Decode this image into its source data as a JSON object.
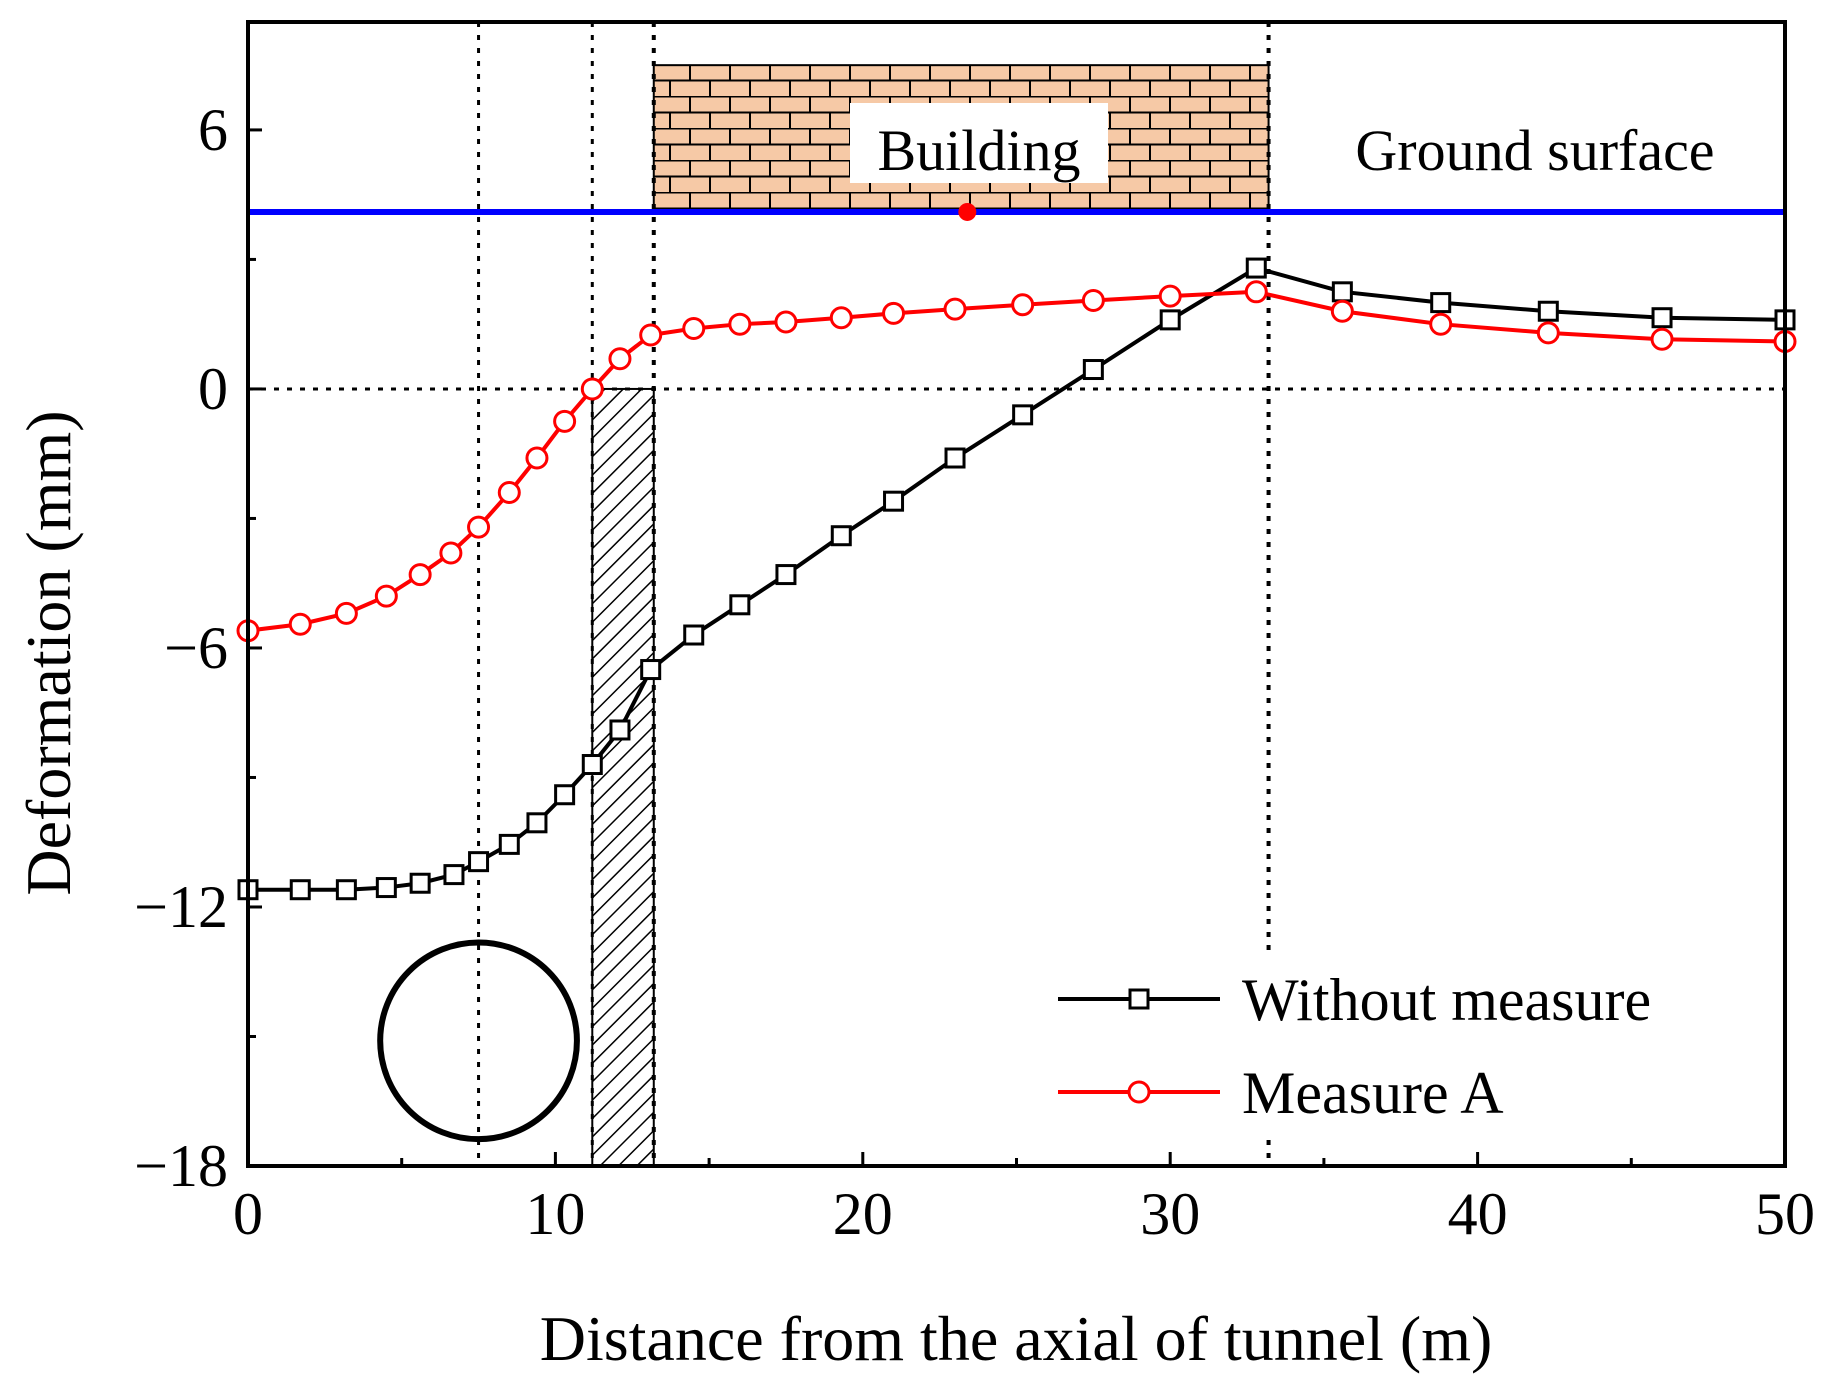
{
  "chart_data": {
    "type": "line",
    "xlabel": "Distance from the axial of tunnel (m)",
    "ylabel": "Deformation (mm)",
    "xlim": [
      0,
      50
    ],
    "ylim": [
      -18,
      8.5
    ],
    "x_ticks": [
      "0",
      "10",
      "20",
      "30",
      "40",
      "50"
    ],
    "y_ticks": [
      "−18",
      "−12",
      "−6",
      "0",
      "6"
    ],
    "x_tick_values": [
      0,
      10,
      20,
      30,
      40,
      50
    ],
    "y_tick_values": [
      -18,
      -12,
      -6,
      0,
      6
    ],
    "legend_position": "bottom-right",
    "series": [
      {
        "name": "Without measure",
        "color": "#000000",
        "marker": "square",
        "x": [
          0,
          1.7,
          3.2,
          4.5,
          5.6,
          6.7,
          7.5,
          8.5,
          9.4,
          10.3,
          11.2,
          12.1,
          13.1,
          14.5,
          16.0,
          17.5,
          19.3,
          21.0,
          23.0,
          25.2,
          27.5,
          30.0,
          32.8,
          35.6,
          38.8,
          42.3,
          46.0,
          50.0
        ],
        "y": [
          -11.6,
          -11.6,
          -11.6,
          -11.55,
          -11.45,
          -11.25,
          -10.95,
          -10.55,
          -10.05,
          -9.4,
          -8.7,
          -7.9,
          -6.5,
          -5.7,
          -5.0,
          -4.3,
          -3.4,
          -2.6,
          -1.6,
          -0.6,
          0.45,
          1.6,
          2.8,
          2.25,
          2.0,
          1.8,
          1.65,
          1.6
        ]
      },
      {
        "name": "Measure A",
        "color": "#ff0000",
        "marker": "circle",
        "x": [
          0,
          1.7,
          3.2,
          4.5,
          5.6,
          6.6,
          7.5,
          8.5,
          9.4,
          10.3,
          11.2,
          12.1,
          13.1,
          14.5,
          16.0,
          17.5,
          19.3,
          21.0,
          23.0,
          25.2,
          27.5,
          30.0,
          32.8,
          35.6,
          38.8,
          42.3,
          46.0,
          50.0
        ],
        "y": [
          -5.6,
          -5.45,
          -5.2,
          -4.8,
          -4.3,
          -3.8,
          -3.2,
          -2.4,
          -1.6,
          -0.75,
          0.0,
          0.7,
          1.25,
          1.4,
          1.5,
          1.55,
          1.65,
          1.75,
          1.85,
          1.95,
          2.05,
          2.15,
          2.25,
          1.8,
          1.5,
          1.3,
          1.15,
          1.1
        ]
      }
    ],
    "annotations": {
      "building_label": "Building",
      "ground_label": "Ground surface",
      "ground_level_y": 4.1,
      "building_x_range": [
        13.2,
        33.2
      ],
      "building_top_y": 7.5,
      "building_marker_x": 23.4,
      "reference_lines_x": [
        7.5,
        11.2,
        13.2,
        33.2
      ],
      "hatched_zone_x": [
        11.2,
        13.2
      ],
      "tunnel_center_x": 7.5,
      "tunnel_center_y": -15.1,
      "tunnel_radius": 3.2
    }
  },
  "colors": {
    "ground_line": "#0000ff",
    "building_fill": "#f6c9a6",
    "building_marker": "#ff0000"
  }
}
